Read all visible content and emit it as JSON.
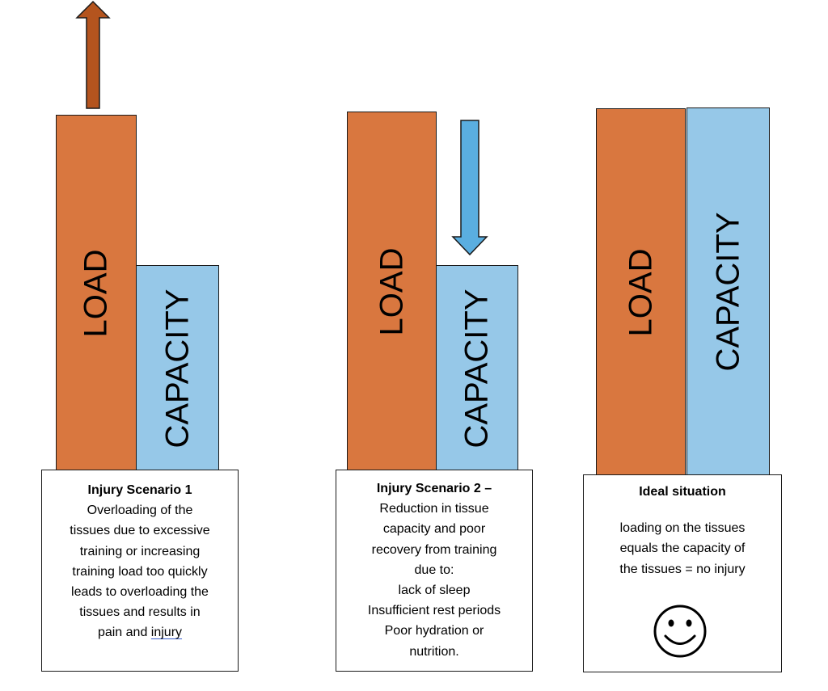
{
  "labels": {
    "load": "LOAD",
    "capacity": "CAPACITY"
  },
  "colors": {
    "load": "#d9773f",
    "capacity": "#96c8e8",
    "arrow_up": "#b4541e",
    "arrow_down": "#5aaee0"
  },
  "scenarios": [
    {
      "title": "Injury Scenario 1",
      "arrow": "up-arrow-icon",
      "lines": [
        "Overloading of the",
        "tissues due to excessive",
        "training or increasing",
        "training load too quickly",
        "leads to overloading the",
        "tissues and results in",
        "pain and"
      ],
      "underlined": "injury"
    },
    {
      "title": "Injury Scenario 2 –",
      "arrow": "down-arrow-icon",
      "lines": [
        "Reduction in tissue",
        "capacity and poor",
        "recovery from training",
        "due to:",
        "lack of sleep",
        "Insufficient rest periods",
        "Poor hydration or",
        "nutrition."
      ]
    },
    {
      "title": "Ideal situation",
      "lines": [
        "loading on the tissues",
        "equals the capacity of",
        "the tissues = no injury"
      ],
      "icon": "smiley-face-icon"
    }
  ]
}
